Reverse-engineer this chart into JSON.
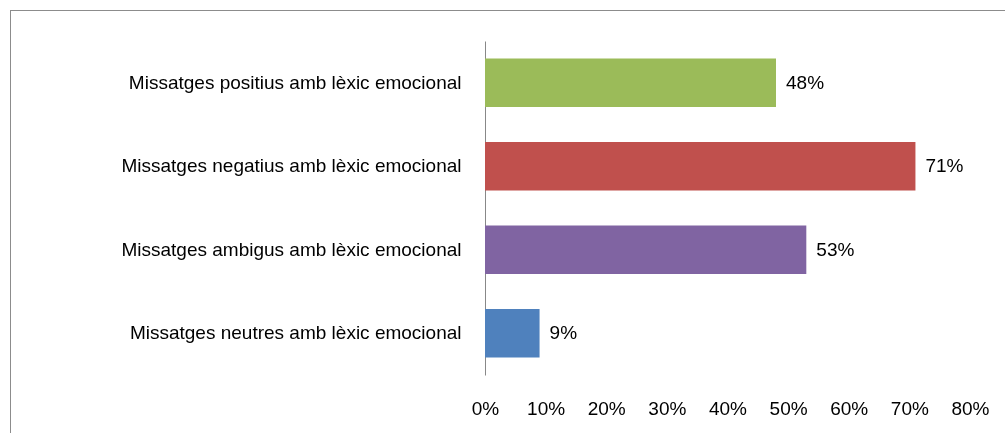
{
  "chart_data": {
    "type": "bar",
    "orientation": "horizontal",
    "categories": [
      "Missatges positius amb lèxic emocional",
      "Missatges negatius amb lèxic emocional",
      "Missatges ambigus amb lèxic emocional",
      "Missatges neutres amb lèxic emocional"
    ],
    "values": [
      48,
      71,
      53,
      9
    ],
    "colors": [
      "#9bbb59",
      "#c0504d",
      "#8064a2",
      "#4f81bd"
    ],
    "value_labels": [
      "48%",
      "71%",
      "53%",
      "9%"
    ],
    "xlim": [
      0,
      80
    ],
    "xticks": [
      {
        "value": 0,
        "label": "0%"
      },
      {
        "value": 10,
        "label": "10%"
      },
      {
        "value": 20,
        "label": "20%"
      },
      {
        "value": 30,
        "label": "30%"
      },
      {
        "value": 40,
        "label": "40%"
      },
      {
        "value": 50,
        "label": "50%"
      },
      {
        "value": 60,
        "label": "60%"
      },
      {
        "value": 70,
        "label": "70%"
      },
      {
        "value": 80,
        "label": "80%"
      }
    ]
  }
}
